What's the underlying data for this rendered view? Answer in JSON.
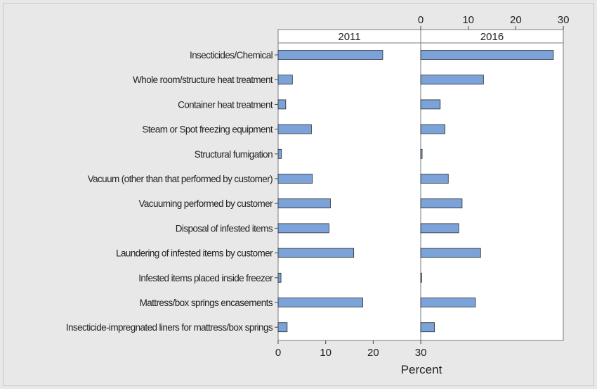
{
  "chart_data": {
    "type": "bar",
    "orientation": "horizontal",
    "categories": [
      "Insecticides/Chemical",
      "Whole room/structure heat treatment",
      "Container heat treatment",
      "Steam or Spot freezing equipment",
      "Structural fumigation",
      "Vacuum (other than that performed by customer)",
      "Vacuuming performed by customer",
      "Disposal of infested items",
      "Laundering of infested items by customer",
      "Infested items placed inside freezer",
      "Mattress/box springs encasements",
      "Insecticide-impregnated liners for mattress/box springs"
    ],
    "panels": [
      {
        "name": "2011",
        "values": [
          22.0,
          3.0,
          1.6,
          7.0,
          0.7,
          7.2,
          11.0,
          10.7,
          15.9,
          0.6,
          17.8,
          1.9
        ]
      },
      {
        "name": "2016",
        "values": [
          27.9,
          13.2,
          4.1,
          5.1,
          0.3,
          5.8,
          8.7,
          8.0,
          12.6,
          0.2,
          11.5,
          2.9
        ]
      }
    ],
    "xlabel": "Percent",
    "xlim": [
      0,
      30
    ],
    "xticks": [
      0,
      10,
      20,
      30
    ],
    "grid": false,
    "bar_color": "#7ba3d9"
  }
}
